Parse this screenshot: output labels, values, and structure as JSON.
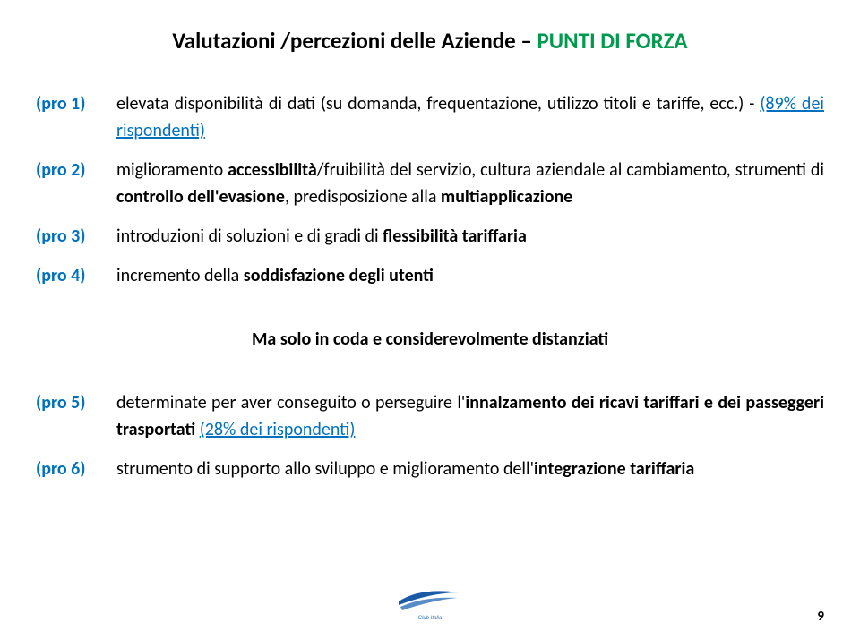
{
  "title": {
    "part1": "Valutazioni /percezioni delle Aziende – ",
    "part2": "PUNTI DI FORZA",
    "part1_color": "#000000",
    "part2_color": "#009a4e",
    "fontsize": 25
  },
  "group1": [
    {
      "label": "(pro 1)",
      "segments": [
        {
          "text": "elevata disponibilità di dati (su domanda, frequentazione, utilizzo titoli e tariffe, ecc.) - ",
          "style": ""
        },
        {
          "text": "(89% dei rispondenti)",
          "style": "blue underline"
        }
      ]
    },
    {
      "label": "(pro 2)",
      "segments": [
        {
          "text": "miglioramento ",
          "style": ""
        },
        {
          "text": "accessibilità",
          "style": "bold"
        },
        {
          "text": "/fruibilità del servizio, cultura aziendale al cambiamento, strumenti di ",
          "style": ""
        },
        {
          "text": "controllo dell'evasione",
          "style": "bold"
        },
        {
          "text": ", predisposizione alla ",
          "style": ""
        },
        {
          "text": "multiapplicazione",
          "style": "bold"
        }
      ]
    },
    {
      "label": "(pro 3)",
      "segments": [
        {
          "text": "introduzioni di soluzioni e di gradi di ",
          "style": ""
        },
        {
          "text": "flessibilità tariffaria",
          "style": "bold"
        }
      ]
    },
    {
      "label": "(pro 4)",
      "segments": [
        {
          "text": "incremento della ",
          "style": ""
        },
        {
          "text": "soddisfazione degli utenti",
          "style": "bold"
        }
      ]
    }
  ],
  "mid_note": "Ma solo in coda e considerevolmente distanziati",
  "group2": [
    {
      "label": "(pro 5)",
      "segments": [
        {
          "text": "determinate per aver conseguito o perseguire l'",
          "style": ""
        },
        {
          "text": "innalzamento dei ricavi tariffari e dei passeggeri trasportati",
          "style": "bold"
        },
        {
          "text": " ",
          "style": ""
        },
        {
          "text": "(28% dei rispondenti)",
          "style": "blue underline"
        }
      ]
    },
    {
      "label": "(pro 6)",
      "segments": [
        {
          "text": "strumento di supporto allo sviluppo e miglioramento dell'",
          "style": ""
        },
        {
          "text": "integrazione tariffaria",
          "style": "bold"
        }
      ]
    }
  ],
  "page_number": "9",
  "colors": {
    "label_blue": "#0070c0",
    "link_blue": "#0070c0",
    "title_green": "#009a4e",
    "text_black": "#000000",
    "background": "#ffffff"
  },
  "fontsize_body": 20,
  "logo_colors": {
    "swoosh": "#1b5aa6",
    "text": "#2d6fb8"
  }
}
